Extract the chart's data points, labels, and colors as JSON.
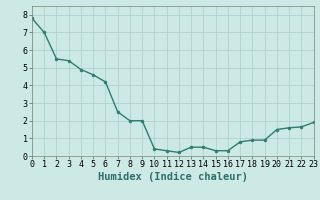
{
  "x": [
    0,
    1,
    2,
    3,
    4,
    5,
    6,
    7,
    8,
    9,
    10,
    11,
    12,
    13,
    14,
    15,
    16,
    17,
    18,
    19,
    20,
    21,
    22,
    23
  ],
  "y": [
    7.8,
    7.0,
    5.5,
    5.4,
    4.9,
    4.6,
    4.2,
    2.5,
    2.0,
    2.0,
    0.4,
    0.3,
    0.2,
    0.5,
    0.5,
    0.3,
    0.3,
    0.8,
    0.9,
    0.9,
    1.5,
    1.6,
    1.65,
    1.9
  ],
  "line_color": "#2e7d6e",
  "marker": "o",
  "marker_size": 2.0,
  "linewidth": 1.0,
  "xlabel": "Humidex (Indice chaleur)",
  "xlim": [
    0,
    23
  ],
  "ylim": [
    0,
    8.5
  ],
  "yticks": [
    0,
    1,
    2,
    3,
    4,
    5,
    6,
    7,
    8
  ],
  "xticks": [
    0,
    1,
    2,
    3,
    4,
    5,
    6,
    7,
    8,
    9,
    10,
    11,
    12,
    13,
    14,
    15,
    16,
    17,
    18,
    19,
    20,
    21,
    22,
    23
  ],
  "background_color": "#cce9e5",
  "grid_color": "#aacfcb",
  "xlabel_fontsize": 7.5,
  "tick_fontsize": 6.0
}
